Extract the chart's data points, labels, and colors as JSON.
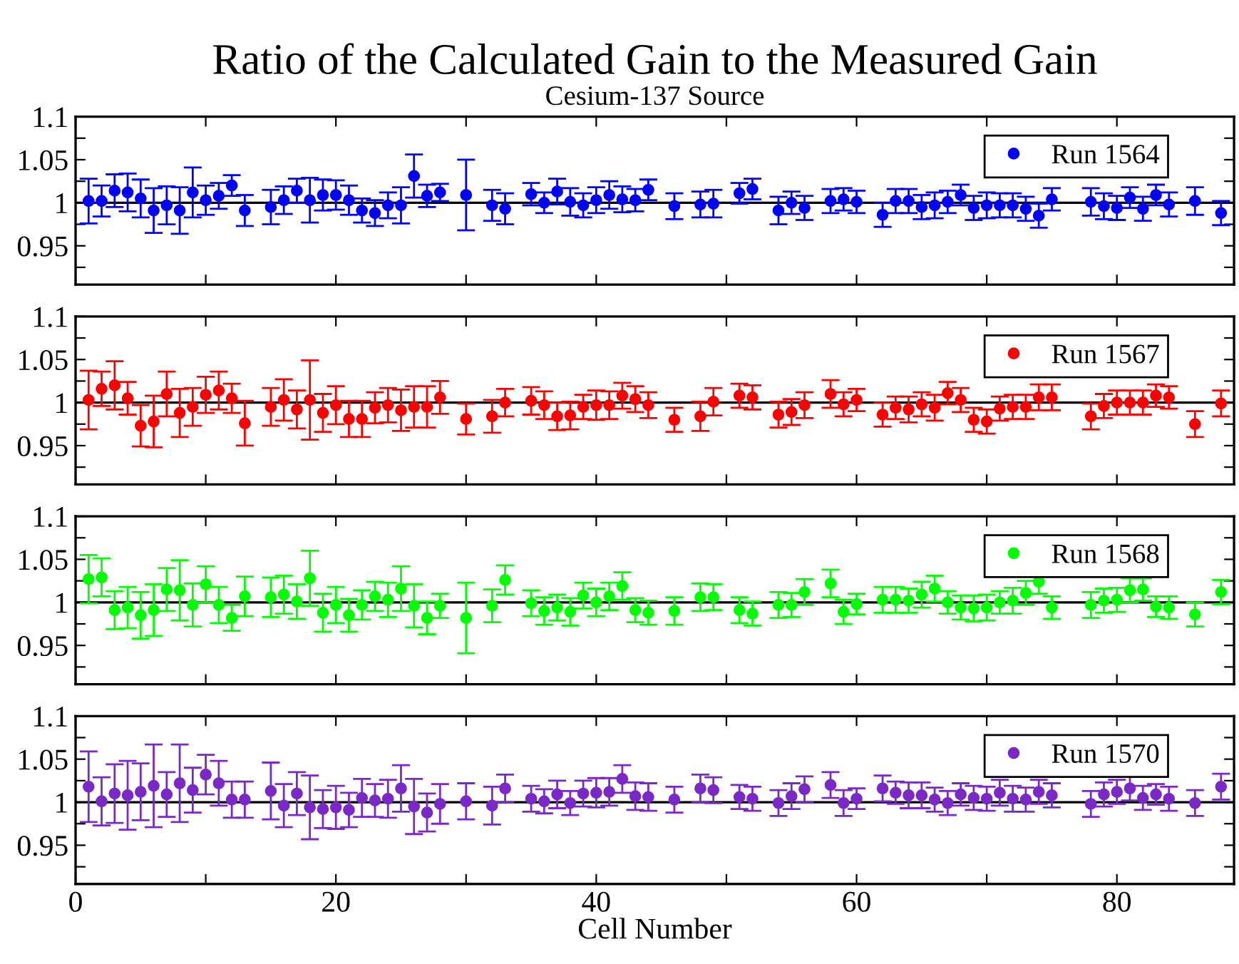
{
  "chart_data": [
    {
      "type": "scatter",
      "title": "Ratio of the Calculated Gain to the Measured Gain",
      "subtitle": "Cesium-137 Source",
      "xlim": [
        0,
        89
      ],
      "xticks": [
        0,
        {
          "value": 10,
          "label": null
        },
        20,
        {
          "value": 30,
          "label": null
        },
        40,
        {
          "value": 50,
          "label": null
        },
        60,
        {
          "value": 70,
          "label": null
        },
        80
      ],
      "ylim": [
        0.905,
        1.1
      ],
      "yticks": [
        {
          "value": 0.925,
          "label": null
        },
        0.95,
        {
          "value": 0.975,
          "label": null
        },
        1,
        {
          "value": 1.025,
          "label": null
        },
        1.05,
        {
          "value": 1.075,
          "label": null
        },
        1.1
      ],
      "tick_labels": "y",
      "marker": "circle",
      "grid": false,
      "legend": "top right",
      "ref_lines": [
        {
          "axis": "y",
          "value": 1,
          "color": "#000000"
        }
      ],
      "series": [
        {
          "name": "Run 1564",
          "color": "#0000ff",
          "x": [
            1,
            2,
            3,
            4,
            5,
            6,
            7,
            8,
            9,
            10,
            11,
            12,
            13,
            15,
            16,
            17,
            18,
            19,
            20,
            21,
            22,
            23,
            24,
            25,
            26,
            27,
            28,
            30,
            32,
            33,
            35,
            36,
            37,
            38,
            39,
            40,
            41,
            42,
            43,
            44,
            46,
            48,
            49,
            51,
            52,
            54,
            55,
            56,
            58,
            59,
            60,
            62,
            63,
            64,
            65,
            66,
            67,
            68,
            69,
            70,
            71,
            72,
            73,
            74,
            75,
            78,
            79,
            80,
            81,
            82,
            83,
            84,
            86,
            88
          ],
          "values": [
            1.002,
            1.002,
            1.014,
            1.012,
            1.005,
            0.991,
            0.997,
            0.991,
            1.012,
            1.003,
            1.008,
            1.02,
            0.991,
            0.995,
            1.003,
            1.014,
            1.003,
            1.009,
            1.009,
            1.003,
            0.991,
            0.988,
            0.997,
            0.997,
            1.031,
            1.008,
            1.012,
            1.009,
            0.997,
            0.993,
            1.01,
            1.0,
            1.013,
            1.001,
            0.997,
            1.003,
            1.009,
            1.004,
            1.003,
            1.015,
            0.996,
            0.998,
            0.999,
            1.011,
            1.016,
            0.991,
            1.0,
            0.994,
            1.002,
            1.004,
            1.001,
            0.986,
            1.002,
            1.002,
            0.995,
            0.997,
            1.001,
            1.009,
            0.994,
            0.997,
            0.997,
            0.997,
            0.993,
            0.985,
            1.004,
            1.001,
            0.996,
            0.994,
            1.006,
            0.993,
            1.009,
            0.998,
            1.002,
            0.988
          ],
          "errors": [
            0.026,
            0.018,
            0.019,
            0.022,
            0.022,
            0.026,
            0.022,
            0.027,
            0.029,
            0.017,
            0.015,
            0.012,
            0.018,
            0.02,
            0.016,
            0.014,
            0.026,
            0.018,
            0.017,
            0.017,
            0.014,
            0.015,
            0.015,
            0.021,
            0.025,
            0.013,
            0.01,
            0.041,
            0.018,
            0.018,
            0.013,
            0.012,
            0.015,
            0.016,
            0.014,
            0.015,
            0.016,
            0.015,
            0.013,
            0.012,
            0.015,
            0.015,
            0.016,
            0.012,
            0.012,
            0.016,
            0.013,
            0.014,
            0.014,
            0.013,
            0.013,
            0.014,
            0.014,
            0.014,
            0.014,
            0.015,
            0.013,
            0.012,
            0.014,
            0.015,
            0.014,
            0.014,
            0.014,
            0.014,
            0.013,
            0.016,
            0.015,
            0.014,
            0.012,
            0.014,
            0.012,
            0.014,
            0.016,
            0.014
          ]
        }
      ]
    },
    {
      "type": "scatter",
      "xlim": [
        0,
        89
      ],
      "xticks": [
        0,
        {
          "value": 10,
          "label": null
        },
        20,
        {
          "value": 30,
          "label": null
        },
        40,
        {
          "value": 50,
          "label": null
        },
        60,
        {
          "value": 70,
          "label": null
        },
        80
      ],
      "ylim": [
        0.905,
        1.1
      ],
      "yticks": [
        {
          "value": 0.925,
          "label": null
        },
        0.95,
        {
          "value": 0.975,
          "label": null
        },
        1,
        {
          "value": 1.025,
          "label": null
        },
        1.05,
        {
          "value": 1.075,
          "label": null
        },
        1.1
      ],
      "tick_labels": "y",
      "marker": "circle",
      "grid": false,
      "legend": "top right",
      "ref_lines": [
        {
          "axis": "y",
          "value": 1,
          "color": "#000000"
        }
      ],
      "series": [
        {
          "name": "Run 1567",
          "color": "#ff0000",
          "x": [
            1,
            2,
            3,
            4,
            5,
            6,
            7,
            8,
            9,
            10,
            11,
            12,
            13,
            15,
            16,
            17,
            18,
            19,
            20,
            21,
            22,
            23,
            24,
            25,
            26,
            27,
            28,
            30,
            32,
            33,
            35,
            36,
            37,
            38,
            39,
            40,
            41,
            42,
            43,
            44,
            46,
            48,
            49,
            51,
            52,
            54,
            55,
            56,
            58,
            59,
            60,
            62,
            63,
            64,
            65,
            66,
            67,
            68,
            69,
            70,
            71,
            72,
            73,
            74,
            75,
            78,
            79,
            80,
            81,
            82,
            83,
            84,
            86,
            88
          ],
          "values": [
            1.003,
            1.016,
            1.02,
            1.005,
            0.973,
            0.978,
            1.01,
            0.988,
            0.995,
            1.009,
            1.014,
            1.005,
            0.976,
            0.995,
            1.003,
            0.992,
            1.003,
            0.988,
            0.997,
            0.981,
            0.981,
            0.994,
            0.997,
            0.991,
            0.995,
            0.995,
            1.006,
            0.981,
            0.984,
            1.0,
            1.002,
            0.997,
            0.984,
            0.985,
            0.995,
            0.997,
            0.997,
            1.008,
            1.004,
            0.997,
            0.98,
            0.984,
            1.001,
            1.008,
            1.006,
            0.986,
            0.989,
            0.997,
            1.01,
            0.998,
            1.003,
            0.986,
            0.994,
            0.992,
            0.998,
            0.994,
            1.011,
            1.003,
            0.98,
            0.978,
            0.993,
            0.995,
            0.995,
            1.006,
            1.006,
            0.984,
            0.996,
            1.0,
            1.0,
            1.0,
            1.008,
            1.006,
            0.975,
            0.999
          ],
          "errors": [
            0.034,
            0.02,
            0.028,
            0.019,
            0.024,
            0.03,
            0.026,
            0.028,
            0.022,
            0.021,
            0.022,
            0.017,
            0.026,
            0.022,
            0.024,
            0.022,
            0.046,
            0.022,
            0.022,
            0.021,
            0.021,
            0.018,
            0.02,
            0.024,
            0.024,
            0.024,
            0.019,
            0.018,
            0.019,
            0.016,
            0.016,
            0.016,
            0.016,
            0.016,
            0.014,
            0.017,
            0.016,
            0.015,
            0.015,
            0.015,
            0.014,
            0.017,
            0.016,
            0.014,
            0.014,
            0.015,
            0.015,
            0.015,
            0.016,
            0.014,
            0.013,
            0.014,
            0.013,
            0.015,
            0.014,
            0.015,
            0.013,
            0.014,
            0.014,
            0.014,
            0.014,
            0.014,
            0.014,
            0.015,
            0.015,
            0.015,
            0.014,
            0.014,
            0.014,
            0.014,
            0.013,
            0.013,
            0.015,
            0.015
          ]
        }
      ]
    },
    {
      "type": "scatter",
      "xlim": [
        0,
        89
      ],
      "xticks": [
        0,
        {
          "value": 10,
          "label": null
        },
        20,
        {
          "value": 30,
          "label": null
        },
        40,
        {
          "value": 50,
          "label": null
        },
        60,
        {
          "value": 70,
          "label": null
        },
        80
      ],
      "ylim": [
        0.905,
        1.1
      ],
      "yticks": [
        {
          "value": 0.925,
          "label": null
        },
        0.95,
        {
          "value": 0.975,
          "label": null
        },
        1,
        {
          "value": 1.025,
          "label": null
        },
        1.05,
        {
          "value": 1.075,
          "label": null
        },
        1.1
      ],
      "tick_labels": "y",
      "marker": "circle",
      "grid": false,
      "legend": "top right",
      "ref_lines": [
        {
          "axis": "y",
          "value": 1,
          "color": "#000000"
        }
      ],
      "series": [
        {
          "name": "Run 1568",
          "color": "#00ff00",
          "x": [
            1,
            2,
            3,
            4,
            5,
            6,
            7,
            8,
            9,
            10,
            11,
            12,
            13,
            15,
            16,
            17,
            18,
            19,
            20,
            21,
            22,
            23,
            24,
            25,
            26,
            27,
            28,
            30,
            32,
            33,
            35,
            36,
            37,
            38,
            39,
            40,
            41,
            42,
            43,
            44,
            46,
            48,
            49,
            51,
            52,
            54,
            55,
            56,
            58,
            59,
            60,
            62,
            63,
            64,
            65,
            66,
            67,
            68,
            69,
            70,
            71,
            72,
            73,
            74,
            75,
            78,
            79,
            80,
            81,
            82,
            83,
            84,
            86,
            88
          ],
          "values": [
            1.027,
            1.029,
            0.991,
            0.994,
            0.985,
            0.991,
            1.015,
            1.014,
            0.997,
            1.021,
            0.997,
            0.982,
            1.007,
            1.006,
            1.009,
            1.001,
            1.028,
            0.988,
            0.997,
            0.985,
            0.997,
            1.007,
            1.003,
            1.016,
            0.996,
            0.982,
            0.996,
            0.982,
            0.996,
            1.026,
            0.999,
            0.99,
            0.994,
            0.989,
            1.008,
            1.0,
            1.007,
            1.019,
            0.991,
            0.988,
            0.99,
            1.006,
            1.006,
            0.991,
            0.987,
            0.997,
            0.997,
            1.012,
            1.022,
            0.989,
            0.998,
            1.003,
            1.003,
            1.002,
            1.009,
            1.016,
            1.0,
            0.994,
            0.993,
            0.994,
            1.0,
            1.002,
            1.011,
            1.024,
            0.994,
            0.997,
            1.002,
            1.003,
            1.014,
            1.015,
            0.995,
            0.994,
            0.986,
            1.012
          ],
          "errors": [
            0.028,
            0.022,
            0.022,
            0.024,
            0.027,
            0.03,
            0.025,
            0.035,
            0.025,
            0.021,
            0.021,
            0.015,
            0.023,
            0.023,
            0.022,
            0.02,
            0.032,
            0.022,
            0.021,
            0.019,
            0.017,
            0.017,
            0.02,
            0.026,
            0.025,
            0.019,
            0.014,
            0.041,
            0.019,
            0.017,
            0.015,
            0.016,
            0.015,
            0.016,
            0.015,
            0.016,
            0.016,
            0.016,
            0.014,
            0.014,
            0.016,
            0.016,
            0.015,
            0.015,
            0.014,
            0.015,
            0.014,
            0.015,
            0.016,
            0.014,
            0.012,
            0.015,
            0.015,
            0.014,
            0.015,
            0.015,
            0.013,
            0.014,
            0.015,
            0.015,
            0.013,
            0.015,
            0.014,
            0.014,
            0.013,
            0.015,
            0.014,
            0.014,
            0.014,
            0.013,
            0.012,
            0.013,
            0.014,
            0.014
          ]
        }
      ]
    },
    {
      "type": "scatter",
      "xlabel": "Cell Number",
      "xlim": [
        0,
        89
      ],
      "xticks": [
        0,
        {
          "value": 10,
          "label": null
        },
        20,
        {
          "value": 30,
          "label": null
        },
        40,
        {
          "value": 50,
          "label": null
        },
        60,
        {
          "value": 70,
          "label": null
        },
        80
      ],
      "ylim": [
        0.905,
        1.1
      ],
      "yticks": [
        {
          "value": 0.925,
          "label": null
        },
        0.95,
        {
          "value": 0.975,
          "label": null
        },
        1,
        {
          "value": 1.025,
          "label": null
        },
        1.05,
        {
          "value": 1.075,
          "label": null
        },
        1.1
      ],
      "marker": "circle",
      "grid": false,
      "legend": "top right",
      "ref_lines": [
        {
          "axis": "y",
          "value": 1,
          "color": "#000000"
        }
      ],
      "series": [
        {
          "name": "Run 1570",
          "color": "#7b28c8",
          "x": [
            1,
            2,
            3,
            4,
            5,
            6,
            7,
            8,
            9,
            10,
            11,
            12,
            13,
            15,
            16,
            17,
            18,
            19,
            20,
            21,
            22,
            23,
            24,
            25,
            26,
            27,
            28,
            30,
            32,
            33,
            35,
            36,
            37,
            38,
            39,
            40,
            41,
            42,
            43,
            44,
            46,
            48,
            49,
            51,
            52,
            54,
            55,
            56,
            58,
            59,
            60,
            62,
            63,
            64,
            65,
            66,
            67,
            68,
            69,
            70,
            71,
            72,
            73,
            74,
            75,
            78,
            79,
            80,
            81,
            82,
            83,
            84,
            86,
            88
          ],
          "values": [
            1.018,
            1.001,
            1.01,
            1.008,
            1.012,
            1.019,
            1.009,
            1.022,
            1.014,
            1.032,
            1.022,
            1.003,
            1.003,
            1.013,
            0.996,
            1.01,
            0.994,
            0.992,
            0.994,
            0.991,
            1.005,
            1.002,
            1.004,
            1.016,
            0.995,
            0.988,
            0.998,
            1.001,
            0.996,
            1.016,
            1.004,
            1.001,
            1.009,
            0.999,
            1.01,
            1.011,
            1.012,
            1.027,
            1.007,
            1.006,
            1.003,
            1.016,
            1.014,
            1.006,
            1.004,
            0.999,
            1.007,
            1.015,
            1.02,
            0.999,
            1.004,
            1.016,
            1.011,
            1.008,
            1.008,
            1.003,
            0.999,
            1.009,
            1.005,
            1.004,
            1.011,
            1.004,
            1.003,
            1.012,
            1.008,
            0.998,
            1.009,
            1.012,
            1.016,
            1.005,
            1.009,
            1.004,
            0.999,
            1.018
          ],
          "errors": [
            0.041,
            0.028,
            0.034,
            0.04,
            0.033,
            0.048,
            0.026,
            0.045,
            0.026,
            0.023,
            0.026,
            0.021,
            0.021,
            0.033,
            0.025,
            0.025,
            0.037,
            0.022,
            0.025,
            0.02,
            0.022,
            0.019,
            0.022,
            0.027,
            0.032,
            0.022,
            0.023,
            0.021,
            0.022,
            0.016,
            0.015,
            0.014,
            0.016,
            0.014,
            0.015,
            0.017,
            0.016,
            0.016,
            0.016,
            0.016,
            0.015,
            0.016,
            0.015,
            0.014,
            0.014,
            0.015,
            0.015,
            0.015,
            0.015,
            0.015,
            0.012,
            0.015,
            0.013,
            0.015,
            0.015,
            0.014,
            0.014,
            0.013,
            0.014,
            0.014,
            0.015,
            0.015,
            0.014,
            0.014,
            0.014,
            0.015,
            0.014,
            0.014,
            0.014,
            0.014,
            0.012,
            0.014,
            0.015,
            0.015
          ]
        }
      ]
    }
  ]
}
